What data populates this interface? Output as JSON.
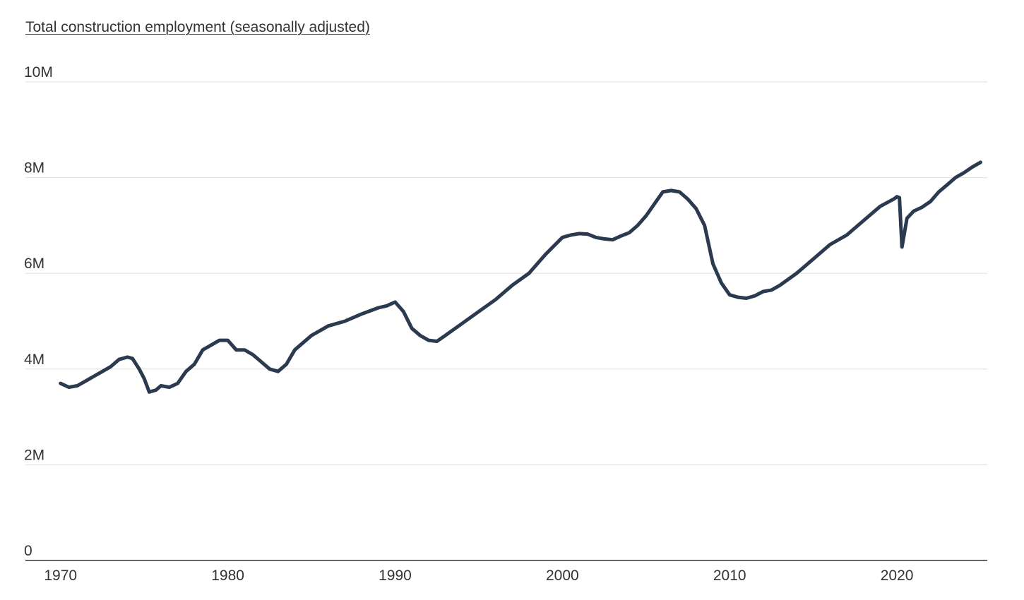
{
  "chart_data": {
    "type": "line",
    "title": "Total construction employment (seasonally adjusted)",
    "xlabel": "",
    "ylabel": "",
    "xlim": [
      1967.9,
      2025.4
    ],
    "ylim": [
      0,
      10000000
    ],
    "x_ticks": [
      {
        "value": 1970,
        "label": "1970"
      },
      {
        "value": 1980,
        "label": "1980"
      },
      {
        "value": 1990,
        "label": "1990"
      },
      {
        "value": 2000,
        "label": "2000"
      },
      {
        "value": 2010,
        "label": "2010"
      },
      {
        "value": 2020,
        "label": "2020"
      }
    ],
    "y_ticks": [
      {
        "value": 0,
        "label": "0"
      },
      {
        "value": 2000000,
        "label": "2M"
      },
      {
        "value": 4000000,
        "label": "4M"
      },
      {
        "value": 6000000,
        "label": "6M"
      },
      {
        "value": 8000000,
        "label": "8M"
      },
      {
        "value": 10000000,
        "label": "10M"
      }
    ],
    "grid": true,
    "line_color": "#2b3a4e",
    "series": [
      {
        "name": "",
        "x": [
          1970.0,
          1970.5,
          1971.0,
          1971.5,
          1972.0,
          1972.5,
          1973.0,
          1973.5,
          1974.0,
          1974.3,
          1974.7,
          1975.0,
          1975.3,
          1975.7,
          1976.0,
          1976.5,
          1977.0,
          1977.5,
          1978.0,
          1978.5,
          1979.0,
          1979.5,
          1980.0,
          1980.5,
          1981.0,
          1981.5,
          1982.0,
          1982.5,
          1983.0,
          1983.5,
          1984.0,
          1985.0,
          1986.0,
          1987.0,
          1988.0,
          1989.0,
          1989.5,
          1990.0,
          1990.5,
          1991.0,
          1991.5,
          1992.0,
          1992.5,
          1993.0,
          1994.0,
          1995.0,
          1996.0,
          1997.0,
          1998.0,
          1999.0,
          2000.0,
          2000.5,
          2001.0,
          2001.5,
          2002.0,
          2002.5,
          2003.0,
          2003.5,
          2004.0,
          2004.5,
          2005.0,
          2005.5,
          2006.0,
          2006.5,
          2007.0,
          2007.5,
          2008.0,
          2008.5,
          2009.0,
          2009.5,
          2010.0,
          2010.5,
          2011.0,
          2011.5,
          2012.0,
          2012.5,
          2013.0,
          2014.0,
          2015.0,
          2016.0,
          2017.0,
          2018.0,
          2019.0,
          2019.8,
          2020.0,
          2020.15,
          2020.3,
          2020.6,
          2021.0,
          2021.5,
          2022.0,
          2022.5,
          2023.0,
          2023.5,
          2024.0,
          2024.5,
          2025.0
        ],
        "values": [
          3700000,
          3620000,
          3650000,
          3750000,
          3850000,
          3950000,
          4050000,
          4200000,
          4250000,
          4220000,
          4000000,
          3800000,
          3520000,
          3560000,
          3650000,
          3620000,
          3700000,
          3950000,
          4100000,
          4400000,
          4500000,
          4600000,
          4600000,
          4400000,
          4400000,
          4300000,
          4150000,
          4000000,
          3950000,
          4100000,
          4400000,
          4700000,
          4900000,
          5000000,
          5150000,
          5280000,
          5320000,
          5400000,
          5200000,
          4850000,
          4700000,
          4600000,
          4580000,
          4700000,
          4950000,
          5200000,
          5450000,
          5750000,
          6000000,
          6400000,
          6750000,
          6800000,
          6830000,
          6820000,
          6750000,
          6720000,
          6700000,
          6780000,
          6850000,
          7000000,
          7200000,
          7450000,
          7700000,
          7730000,
          7700000,
          7550000,
          7350000,
          7000000,
          6200000,
          5800000,
          5550000,
          5500000,
          5480000,
          5530000,
          5620000,
          5650000,
          5750000,
          6000000,
          6300000,
          6600000,
          6800000,
          7100000,
          7400000,
          7550000,
          7600000,
          7580000,
          6550000,
          7150000,
          7300000,
          7380000,
          7500000,
          7700000,
          7850000,
          8000000,
          8100000,
          8220000,
          8320000
        ]
      }
    ]
  }
}
